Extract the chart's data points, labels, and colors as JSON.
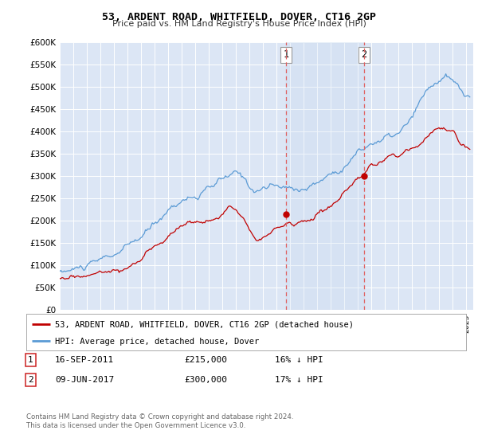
{
  "title": "53, ARDENT ROAD, WHITFIELD, DOVER, CT16 2GP",
  "subtitle": "Price paid vs. HM Land Registry's House Price Index (HPI)",
  "ylim": [
    0,
    600000
  ],
  "yticks": [
    0,
    50000,
    100000,
    150000,
    200000,
    250000,
    300000,
    350000,
    400000,
    450000,
    500000,
    550000,
    600000
  ],
  "xlim_start": 1995.0,
  "xlim_end": 2025.5,
  "hpi_color": "#5b9bd5",
  "price_color": "#c00000",
  "vline1_x": 2011.71,
  "vline2_x": 2017.44,
  "marker1_x": 2011.71,
  "marker1_y": 215000,
  "marker2_x": 2017.44,
  "marker2_y": 300000,
  "legend_label_price": "53, ARDENT ROAD, WHITFIELD, DOVER, CT16 2GP (detached house)",
  "legend_label_hpi": "HPI: Average price, detached house, Dover",
  "sale1_date": "16-SEP-2011",
  "sale1_price": "£215,000",
  "sale1_hpi": "16% ↓ HPI",
  "sale2_date": "09-JUN-2017",
  "sale2_price": "£300,000",
  "sale2_hpi": "17% ↓ HPI",
  "footnote": "Contains HM Land Registry data © Crown copyright and database right 2024.\nThis data is licensed under the Open Government Licence v3.0.",
  "background_color": "#ffffff",
  "plot_bg_color": "#dce6f5"
}
